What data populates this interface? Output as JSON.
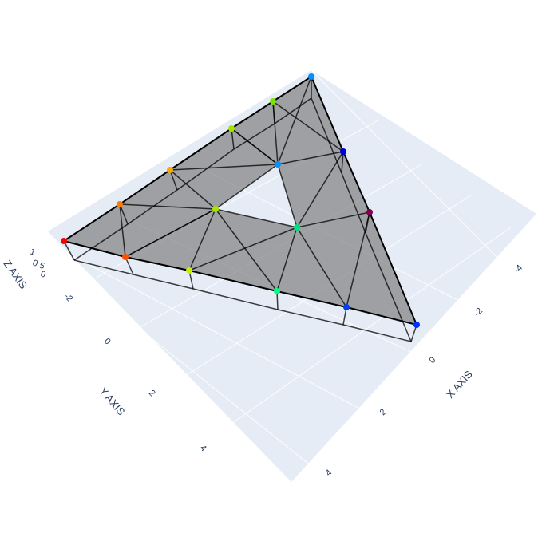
{
  "chart_data": {
    "type": "mesh3d",
    "title": "",
    "axes": {
      "x": {
        "title": "X AXIS",
        "ticks": [
          "-4",
          "-2",
          "0",
          "2",
          "4"
        ]
      },
      "y": {
        "title": "Y AXIS",
        "ticks": [
          "-2",
          "0",
          "2",
          "4"
        ]
      },
      "z": {
        "title": "Z AXIS",
        "ticks": [
          "0",
          "0.5",
          "1"
        ]
      }
    },
    "scene_background": "#e5ecf6",
    "mesh_color": "#808080",
    "edge_color": "#000000",
    "node_colorscale": "hsv",
    "surface": {
      "description_levels": [
        "top",
        "bottom"
      ],
      "nodes_top": [
        {
          "id": "n0",
          "color": "#e00000"
        },
        {
          "id": "n1",
          "color": "#ff5a00"
        },
        {
          "id": "n2",
          "color": "#ffa000"
        },
        {
          "id": "n3",
          "color": "#c8e600"
        },
        {
          "id": "n4",
          "color": "#00ff78"
        },
        {
          "id": "n5",
          "color": "#00a0ff"
        },
        {
          "id": "n6",
          "color": "#0000c8"
        },
        {
          "id": "n7",
          "color": "#780050"
        }
      ]
    }
  }
}
